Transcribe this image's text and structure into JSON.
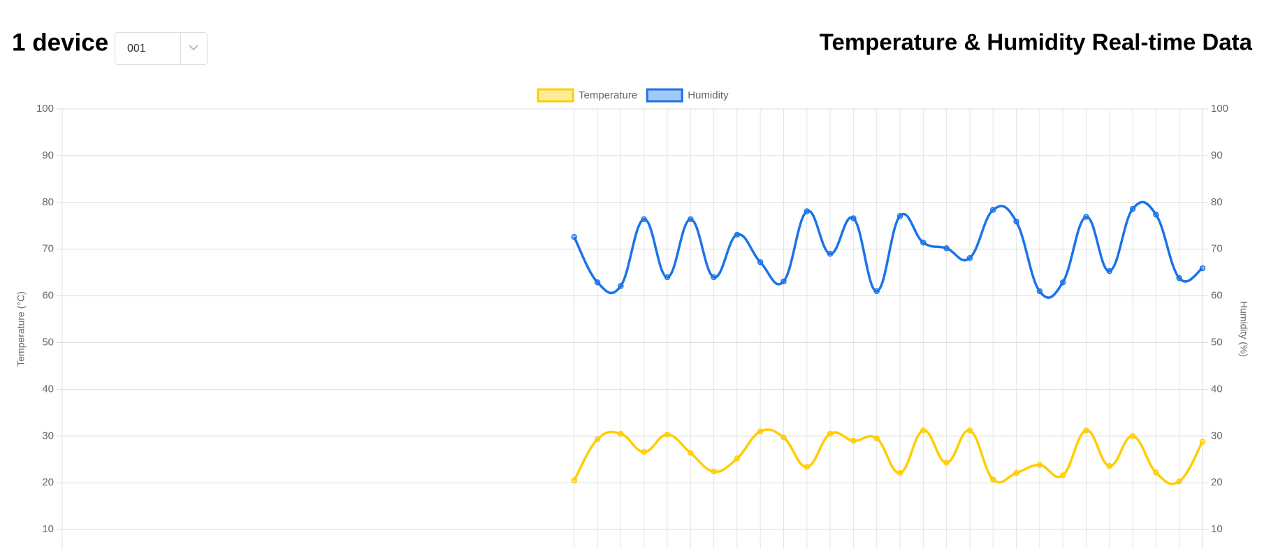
{
  "header": {
    "title": "1 device",
    "select": "001",
    "page_title": "Temperature & Humidity Real-time Data"
  },
  "chart_data": {
    "type": "line",
    "categories": [
      null,
      null,
      null,
      null,
      null,
      null,
      null,
      null,
      null,
      null,
      null,
      null,
      null,
      null,
      null,
      null,
      null,
      null,
      null,
      null,
      null,
      null,
      null,
      null,
      null,
      null,
      null,
      null,
      null,
      null,
      null,
      null,
      null,
      null,
      null,
      null,
      null,
      null,
      null,
      null,
      null,
      null,
      null,
      null,
      null,
      null,
      null,
      null,
      null,
      null
    ],
    "series": [
      {
        "name": "Temperature",
        "color": "#ffcd00",
        "values": [
          null,
          null,
          null,
          null,
          null,
          null,
          null,
          null,
          null,
          null,
          null,
          null,
          null,
          null,
          null,
          null,
          null,
          null,
          null,
          null,
          null,
          null,
          20.5,
          29.3,
          30.5,
          26.6,
          30.3,
          26.4,
          22.4,
          25.2,
          31.0,
          29.7,
          23.4,
          30.5,
          29.0,
          29.5,
          22.1,
          31.2,
          24.3,
          31.2,
          20.7,
          22.1,
          23.8,
          21.6,
          31.2,
          23.6,
          30.0,
          22.2,
          20.3,
          28.8
        ]
      },
      {
        "name": "Humidity",
        "color": "#1a73e8",
        "axis": "y2",
        "values": [
          null,
          null,
          null,
          null,
          null,
          null,
          null,
          null,
          null,
          null,
          null,
          null,
          null,
          null,
          null,
          null,
          null,
          null,
          null,
          null,
          null,
          null,
          72.6,
          62.9,
          62.1,
          76.4,
          64.0,
          76.4,
          64.0,
          73.1,
          67.2,
          63.1,
          78.1,
          69.0,
          76.6,
          61.0,
          77.1,
          71.4,
          70.2,
          68.1,
          78.4,
          75.9,
          61.0,
          62.9,
          76.9,
          65.3,
          78.6,
          77.4,
          63.8,
          65.9
        ]
      }
    ],
    "y_label": "Temperature (°C)",
    "y2_label": "Humidity (%)",
    "ylim": [
      0,
      100
    ],
    "yticks": [
      10,
      20,
      30,
      40,
      50,
      60,
      70,
      80,
      90,
      100
    ],
    "y2lim": [
      0,
      100
    ],
    "y2ticks": [
      10,
      20,
      30,
      40,
      50,
      60,
      70,
      80,
      90,
      100
    ],
    "grid": true,
    "legend": "top"
  }
}
